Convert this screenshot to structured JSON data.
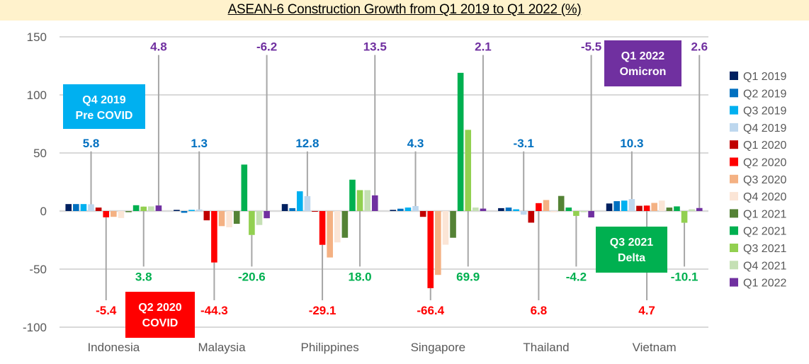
{
  "chart_data": {
    "type": "bar",
    "title": "ASEAN-6 Construction Growth from Q1 2019 to Q1 2022 (%)",
    "xlabel": "",
    "ylabel": "",
    "ylim": [
      -100,
      150
    ],
    "yticks": [
      150,
      100,
      50,
      0,
      -50,
      -100
    ],
    "ytick_labels": [
      "150",
      "100",
      "50",
      "0",
      "-50",
      "-100"
    ],
    "grid": true,
    "legend_position": "right",
    "categories": [
      "Indonesia",
      "Malaysia",
      "Philippines",
      "Singapore",
      "Thailand",
      "Vietnam"
    ],
    "series": [
      {
        "name": "Q1 2019",
        "color": "#002060",
        "values": [
          6.0,
          1.0,
          6.0,
          1.0,
          2.5,
          6.5
        ]
      },
      {
        "name": "Q2 2019",
        "color": "#0070c0",
        "values": [
          6.0,
          -1.5,
          2.5,
          2.0,
          3.0,
          8.5
        ]
      },
      {
        "name": "Q3 2019",
        "color": "#00b0f0",
        "values": [
          6.0,
          1.0,
          17.0,
          3.0,
          1.5,
          9.0
        ]
      },
      {
        "name": "Q4 2019",
        "color": "#bdd7ee",
        "values": [
          5.8,
          1.3,
          12.8,
          4.3,
          -3.1,
          10.3
        ]
      },
      {
        "name": "Q1 2020",
        "color": "#c00000",
        "values": [
          3.0,
          -8.0,
          0.0,
          -5.0,
          -10.0,
          4.5
        ]
      },
      {
        "name": "Q2 2020",
        "color": "#ff0000",
        "values": [
          -5.4,
          -44.3,
          -29.1,
          -66.4,
          6.8,
          4.7
        ]
      },
      {
        "name": "Q3 2020",
        "color": "#f4b183",
        "values": [
          -5.0,
          -13.0,
          -40.0,
          -55.0,
          9.5,
          7.0
        ]
      },
      {
        "name": "Q4 2020",
        "color": "#fbe5d6",
        "values": [
          -6.0,
          -14.0,
          -27.0,
          -29.0,
          -1.0,
          9.0
        ]
      },
      {
        "name": "Q1 2021",
        "color": "#548235",
        "values": [
          -1.0,
          -11.0,
          -23.0,
          -23.0,
          13.0,
          3.0
        ]
      },
      {
        "name": "Q2 2021",
        "color": "#00b050",
        "values": [
          5.0,
          40.0,
          27.0,
          119.0,
          3.0,
          4.0
        ]
      },
      {
        "name": "Q3 2021",
        "color": "#92d050",
        "values": [
          3.8,
          -20.6,
          18.0,
          69.9,
          -4.2,
          -10.1
        ]
      },
      {
        "name": "Q4 2021",
        "color": "#c5e0b4",
        "values": [
          4.0,
          -12.0,
          18.0,
          3.0,
          -1.0,
          1.5
        ]
      },
      {
        "name": "Q1 2022",
        "color": "#7030a0",
        "values": [
          4.8,
          -6.2,
          13.5,
          2.1,
          -5.5,
          2.6
        ]
      }
    ],
    "data_labels": [
      {
        "series": "Q4 2019",
        "color": "#0070c0",
        "position": "upper",
        "values": [
          "5.8",
          "1.3",
          "12.8",
          "4.3",
          "-3.1",
          "10.3"
        ],
        "label_level": 55
      },
      {
        "series": "Q1 2022",
        "color": "#7030a0",
        "position": "top",
        "values": [
          "4.8",
          "-6.2",
          "13.5",
          "2.1",
          "-5.5",
          "2.6"
        ],
        "label_level": 138
      },
      {
        "series": "Q3 2021",
        "color": "#00b050",
        "position": "lower",
        "values": [
          "3.8",
          "-20.6",
          "18.0",
          "69.9",
          "-4.2",
          "-10.1"
        ],
        "label_level": -60
      },
      {
        "series": "Q2 2020",
        "color": "#ff0000",
        "position": "bottom",
        "values": [
          "-5.4",
          "-44.3",
          "-29.1",
          "-66.4",
          "6.8",
          "4.7"
        ],
        "label_level": -89
      }
    ],
    "annotations": [
      {
        "id": "pre-covid",
        "lines": [
          "Q4 2019",
          "Pre COVID"
        ],
        "color": "#00b0f0",
        "anchor_category": "Indonesia",
        "value_top": 109
      },
      {
        "id": "covid",
        "lines": [
          "Q2 2020",
          "COVID"
        ],
        "color": "#ff0000",
        "anchor_category": "Indonesia",
        "value_top": -70
      },
      {
        "id": "delta",
        "lines": [
          "Q3 2021",
          "Delta"
        ],
        "color": "#00b050",
        "anchor_category": "Vietnam",
        "value_top": -10
      },
      {
        "id": "omicron",
        "lines": [
          "Q1 2022",
          "Omicron"
        ],
        "color": "#7030a0",
        "anchor_category": "Thailand",
        "value_top": 140
      }
    ]
  }
}
